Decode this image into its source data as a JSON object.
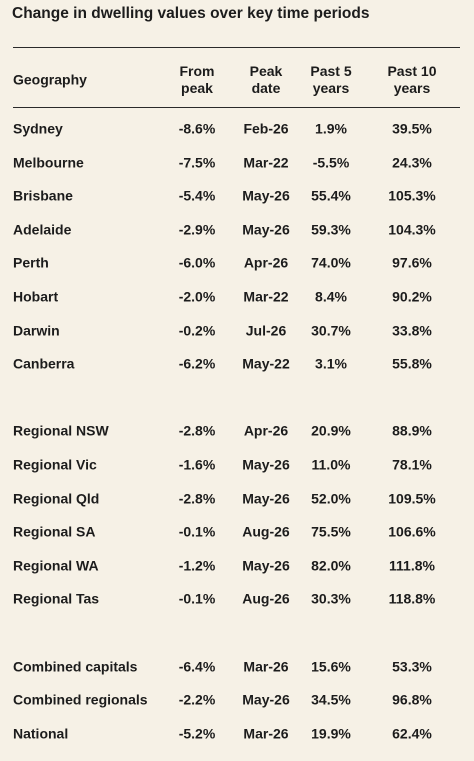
{
  "title": "Change in dwelling values over key time periods",
  "table": {
    "headers": [
      "Geography",
      "From peak",
      "Peak date",
      "Past 5 years",
      "Past 10 years"
    ],
    "groups": [
      [
        [
          "Sydney",
          "-8.6%",
          "Feb-26",
          "1.9%",
          "39.5%"
        ],
        [
          "Melbourne",
          "-7.5%",
          "Mar-22",
          "-5.5%",
          "24.3%"
        ],
        [
          "Brisbane",
          "-5.4%",
          "May-26",
          "55.4%",
          "105.3%"
        ],
        [
          "Adelaide",
          "-2.9%",
          "May-26",
          "59.3%",
          "104.3%"
        ],
        [
          "Perth",
          "-6.0%",
          "Apr-26",
          "74.0%",
          "97.6%"
        ],
        [
          "Hobart",
          "-2.0%",
          "Mar-22",
          "8.4%",
          "90.2%"
        ],
        [
          "Darwin",
          "-0.2%",
          "Jul-26",
          "30.7%",
          "33.8%"
        ],
        [
          "Canberra",
          "-6.2%",
          "May-22",
          "3.1%",
          "55.8%"
        ]
      ],
      [
        [
          "Regional NSW",
          "-2.8%",
          "Apr-26",
          "20.9%",
          "88.9%"
        ],
        [
          "Regional Vic",
          "-1.6%",
          "May-26",
          "11.0%",
          "78.1%"
        ],
        [
          "Regional Qld",
          "-2.8%",
          "May-26",
          "52.0%",
          "109.5%"
        ],
        [
          "Regional SA",
          "-0.1%",
          "Aug-26",
          "75.5%",
          "106.6%"
        ],
        [
          "Regional WA",
          "-1.2%",
          "May-26",
          "82.0%",
          "111.8%"
        ],
        [
          "Regional Tas",
          "-0.1%",
          "Aug-26",
          "30.3%",
          "118.8%"
        ]
      ],
      [
        [
          "Combined capitals",
          "-6.4%",
          "Mar-26",
          "15.6%",
          "53.3%"
        ],
        [
          "Combined regionals",
          "-2.2%",
          "May-26",
          "34.5%",
          "96.8%"
        ],
        [
          "National",
          "-5.2%",
          "Mar-26",
          "19.9%",
          "62.4%"
        ]
      ]
    ]
  }
}
